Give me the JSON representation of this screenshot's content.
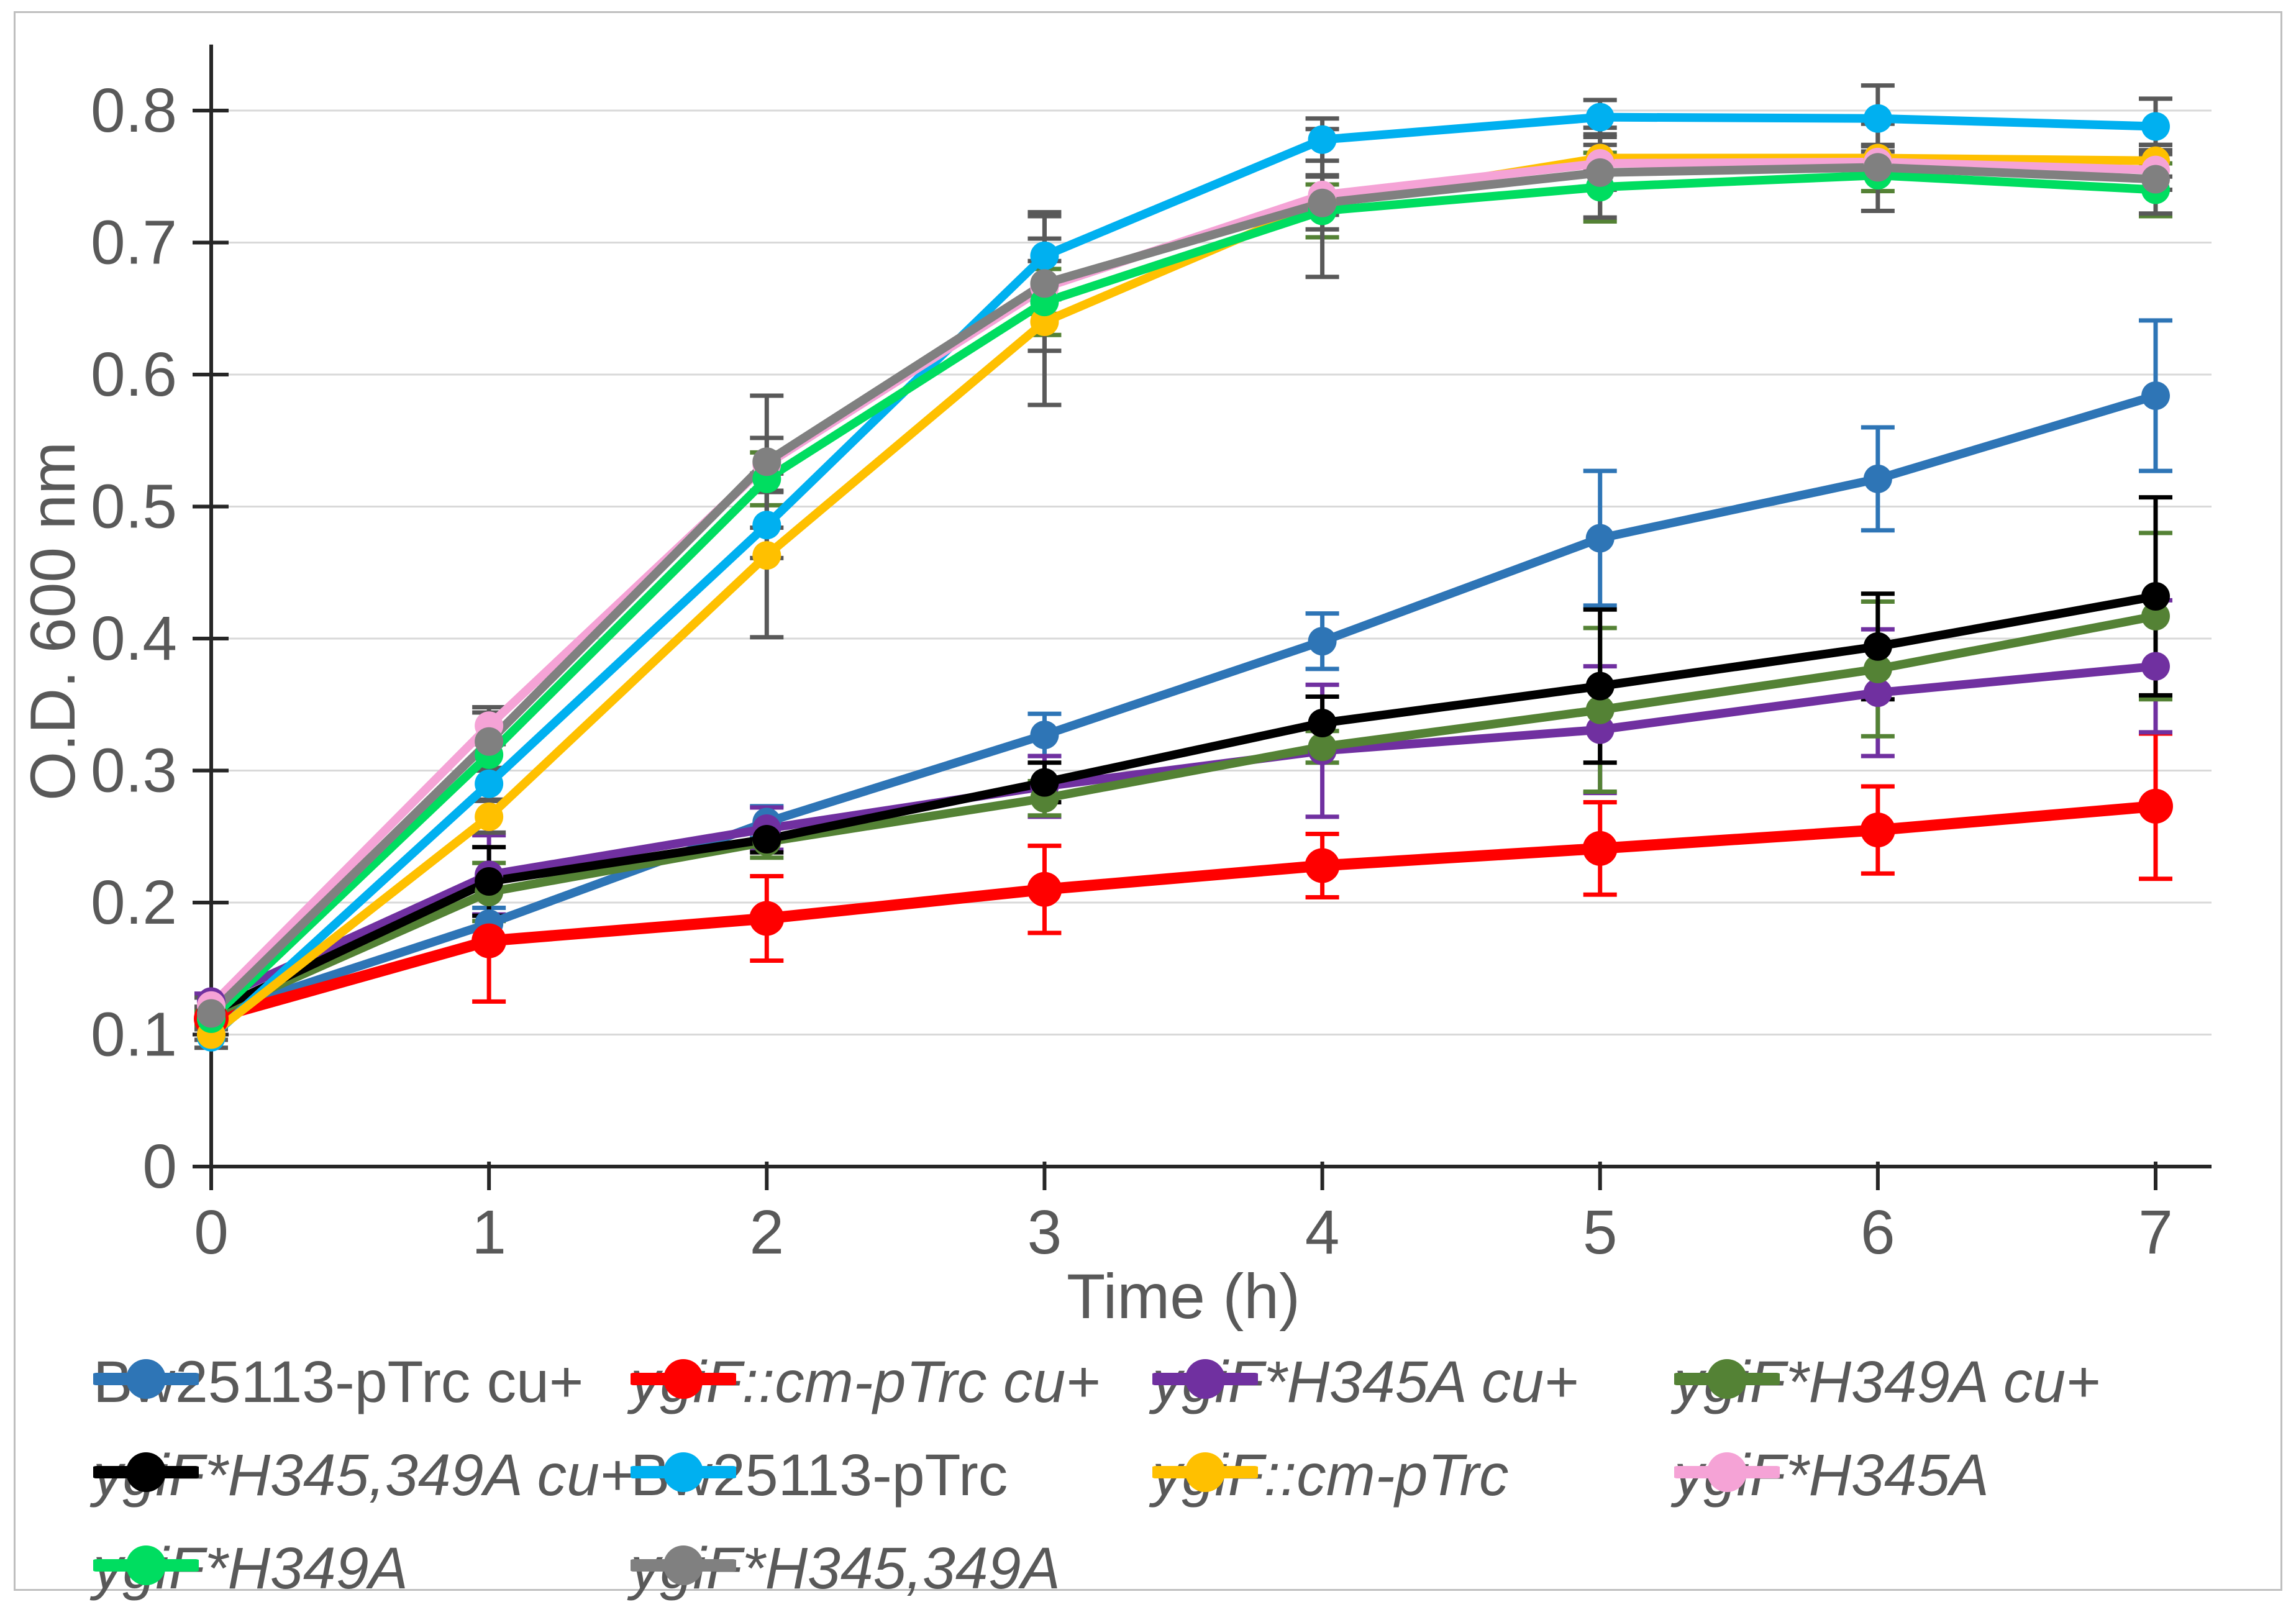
{
  "figure": {
    "border_color": "#bfbfbf",
    "background": "#ffffff",
    "grid_color": "#d9d9d9",
    "axis_color": "#262626",
    "text_color": "#595959"
  },
  "chart_data": {
    "type": "line",
    "title": "",
    "xlabel": "Time (h)",
    "ylabel": "O.D. 600 nm",
    "x": [
      0,
      1,
      2,
      3,
      4,
      5,
      6,
      7
    ],
    "xtick_labels": [
      "0",
      "1",
      "2",
      "3",
      "4",
      "5",
      "6",
      "7"
    ],
    "yticks": [
      0,
      0.1,
      0.2,
      0.3,
      0.4,
      0.5,
      0.6,
      0.7,
      0.8
    ],
    "ytick_labels": [
      "0",
      "0.1",
      "0.2",
      "0.3",
      "0.4",
      "0.5",
      "0.6",
      "0.7",
      "0.8"
    ],
    "xlim": [
      0,
      7
    ],
    "ylim": [
      0,
      0.85
    ],
    "grid": "horizontal",
    "legend_position": "bottom",
    "series": [
      {
        "name": "Bw25113-pTrc cu+",
        "color": "#2e75b6",
        "error_color": "#2e75b6",
        "italic": false,
        "values": [
          0.115,
          0.184,
          0.261,
          0.327,
          0.398,
          0.476,
          0.521,
          0.584
        ],
        "errors": [
          0.005,
          0.012,
          0.012,
          0.016,
          0.021,
          0.051,
          0.039,
          0.057
        ]
      },
      {
        "name": "ygiF::cm-pTrc cu+",
        "color": "#ff0000",
        "error_color": "#ff0000",
        "italic": true,
        "values": [
          0.112,
          0.171,
          0.188,
          0.21,
          0.228,
          0.241,
          0.255,
          0.273
        ],
        "errors": [
          0.004,
          0.046,
          0.032,
          0.033,
          0.024,
          0.035,
          0.033,
          0.055
        ]
      },
      {
        "name": "ygiF*H345A cu+",
        "color": "#7030a0",
        "error_color": "#7030a0",
        "italic": true,
        "values": [
          0.125,
          0.221,
          0.256,
          0.288,
          0.315,
          0.331,
          0.359,
          0.379
        ],
        "errors": [
          0.006,
          0.03,
          0.016,
          0.023,
          0.05,
          0.048,
          0.048,
          0.05
        ]
      },
      {
        "name": "ygiF*H349A cu+",
        "color": "#548235",
        "error_color": "#548235",
        "italic": true,
        "values": [
          0.115,
          0.208,
          0.246,
          0.279,
          0.318,
          0.346,
          0.377,
          0.417
        ],
        "errors": [
          0.005,
          0.022,
          0.012,
          0.013,
          0.012,
          0.062,
          0.051,
          0.063
        ]
      },
      {
        "name": "ygiF*H345,349A cu+",
        "color": "#000000",
        "error_color": "#000000",
        "italic": true,
        "values": [
          0.117,
          0.216,
          0.248,
          0.291,
          0.336,
          0.364,
          0.394,
          0.432
        ],
        "errors": [
          0.004,
          0.026,
          0.01,
          0.015,
          0.02,
          0.058,
          0.04,
          0.075
        ]
      },
      {
        "name": "Bw25113-pTrc",
        "color": "#00b0f0",
        "error_color": "#595959",
        "italic": false,
        "values": [
          0.098,
          0.29,
          0.486,
          0.69,
          0.778,
          0.795,
          0.794,
          0.788
        ],
        "errors": [
          0.008,
          0.012,
          0.025,
          0.033,
          0.016,
          0.013,
          0.025,
          0.021
        ]
      },
      {
        "name": "ygiF::cm-pTrc",
        "color": "#ffc000",
        "error_color": "#595959",
        "italic": true,
        "values": [
          0.1,
          0.265,
          0.463,
          0.64,
          0.73,
          0.764,
          0.764,
          0.762
        ],
        "errors": [
          0.004,
          0.012,
          0.062,
          0.063,
          0.02,
          0.01,
          0.01,
          0.012
        ]
      },
      {
        "name": "ygiF*H345A",
        "color": "#f5a3d6",
        "error_color": "#595959",
        "italic": true,
        "values": [
          0.122,
          0.334,
          0.532,
          0.666,
          0.736,
          0.76,
          0.761,
          0.755
        ],
        "errors": [
          0.006,
          0.014,
          0.02,
          0.02,
          0.015,
          0.02,
          0.012,
          0.015
        ]
      },
      {
        "name": "ygiF*H349A",
        "color": "#00dd60",
        "error_color": "#548235",
        "italic": true,
        "values": [
          0.112,
          0.312,
          0.521,
          0.655,
          0.724,
          0.742,
          0.751,
          0.74
        ],
        "errors": [
          0.005,
          0.012,
          0.02,
          0.025,
          0.02,
          0.026,
          0.012,
          0.02
        ]
      },
      {
        "name": "ygiF*H345,349A",
        "color": "#808080",
        "error_color": "#595959",
        "italic": true,
        "values": [
          0.116,
          0.322,
          0.534,
          0.669,
          0.73,
          0.753,
          0.757,
          0.748
        ],
        "errors": [
          0.005,
          0.022,
          0.05,
          0.051,
          0.056,
          0.034,
          0.033,
          0.026
        ]
      }
    ]
  }
}
